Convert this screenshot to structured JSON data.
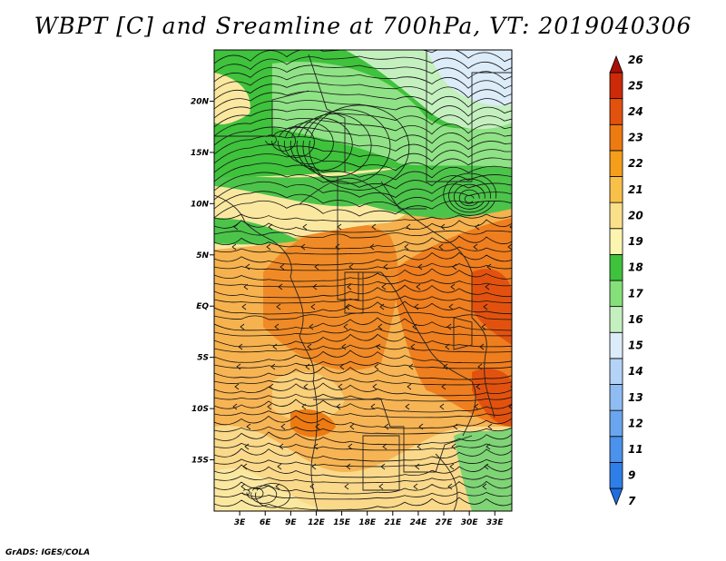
{
  "title": "WBPT [C] and Sreamline at 700hPa, VT: 2019040306",
  "credit": "GrADS: IGES/COLA",
  "map": {
    "lat_labels": [
      "20N",
      "15N",
      "10N",
      "5N",
      "EQ",
      "5S",
      "10S",
      "15S"
    ],
    "lat_values": [
      20,
      15,
      10,
      5,
      0,
      -5,
      -10,
      -15
    ],
    "lon_labels": [
      "3E",
      "6E",
      "9E",
      "12E",
      "15E",
      "18E",
      "21E",
      "24E",
      "27E",
      "30E",
      "33E"
    ],
    "lon_values": [
      3,
      6,
      9,
      12,
      15,
      18,
      21,
      24,
      27,
      30,
      33
    ],
    "lon_range": [
      0,
      35
    ],
    "lat_range": [
      -20,
      25
    ]
  },
  "colorbar": {
    "labels": [
      "7",
      "9",
      "11",
      "12",
      "13",
      "14",
      "15",
      "16",
      "17",
      "18",
      "19",
      "20",
      "21",
      "22",
      "23",
      "24",
      "25",
      "26"
    ],
    "colors": [
      "#1e6ee0",
      "#2f7ee8",
      "#4a92ec",
      "#6aa6f0",
      "#8fbdf3",
      "#b4d3f6",
      "#dcecf9",
      "#c4f0bf",
      "#86e07a",
      "#3fc23c",
      "#fcf5b0",
      "#fbe08a",
      "#f9c049",
      "#f59e1c",
      "#ee7a12",
      "#e2520e",
      "#cc2a08",
      "#a80f06"
    ]
  },
  "regions": [
    {
      "name": "tropical-green-belt",
      "color": "#4cc44a"
    },
    {
      "name": "north-light-green",
      "color": "#8fe285"
    },
    {
      "name": "northeast-pale",
      "color": "#d9f1f7"
    },
    {
      "name": "sahel-yellow",
      "color": "#fbe8a0"
    },
    {
      "name": "central-orange",
      "color": "#f6a43c"
    },
    {
      "name": "east-deep-orange",
      "color": "#ef7e1e"
    },
    {
      "name": "south-orange",
      "color": "#f4a445"
    },
    {
      "name": "southeast-green",
      "color": "#7fd476"
    }
  ]
}
